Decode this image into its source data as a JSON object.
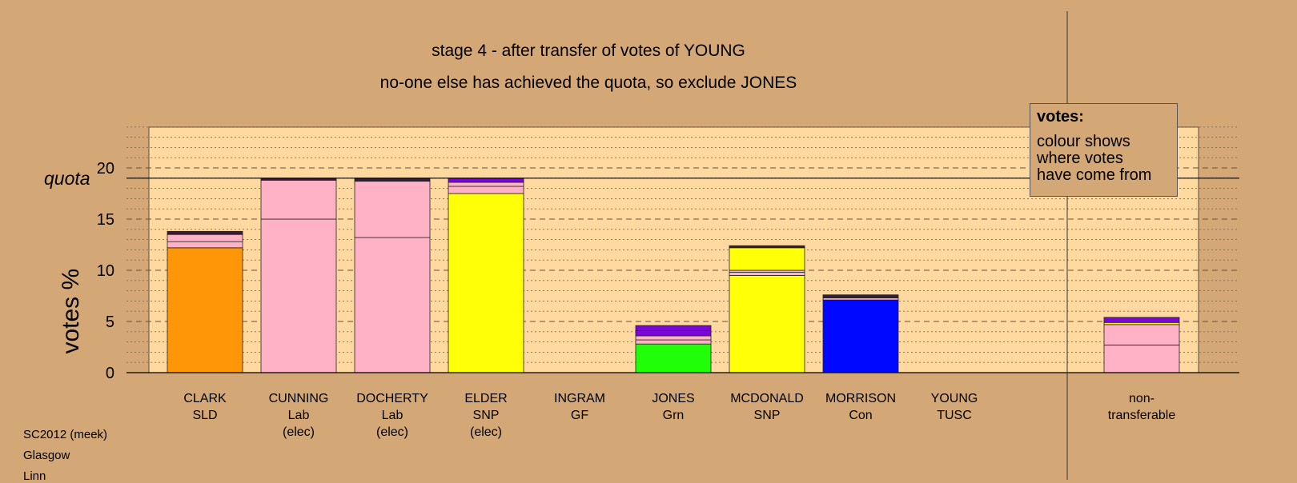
{
  "title": "stage 4 - after transfer of votes of YOUNG",
  "subtitle": "no-one else has achieved the quota, so exclude JONES",
  "legend": {
    "title": "votes:",
    "lines": [
      "colour shows",
      "where votes",
      "have come from"
    ]
  },
  "footer": [
    "SC2012 (meek)",
    "Glasgow",
    "Linn"
  ],
  "colors": {
    "background": "#d4a876",
    "plot_bg": "#ffd9a0",
    "SLD": "#ff9608",
    "Lab": "#ffb1c6",
    "SNP": "#ffff08",
    "Grn": "#21ff08",
    "Con": "#0008ff",
    "transfer_purple": "#7a07d6",
    "transfer_dark": "#3a1a3a"
  },
  "chart_data": {
    "type": "bar",
    "stacked": true,
    "ylabel": "votes %",
    "yticks": [
      0,
      5,
      10,
      15,
      20
    ],
    "ylim": [
      0,
      24
    ],
    "quota": 19,
    "quota_label": "quota",
    "grid": "dashed major, dotted minor",
    "categories": [
      {
        "name": "CLARK",
        "party": "SLD",
        "note": ""
      },
      {
        "name": "CUNNING",
        "party": "Lab",
        "note": "(elec)"
      },
      {
        "name": "DOCHERTY",
        "party": "Lab",
        "note": "(elec)"
      },
      {
        "name": "ELDER",
        "party": "SNP",
        "note": "(elec)"
      },
      {
        "name": "INGRAM",
        "party": "GF",
        "note": ""
      },
      {
        "name": "JONES",
        "party": "Grn",
        "note": ""
      },
      {
        "name": "MCDONALD",
        "party": "SNP",
        "note": ""
      },
      {
        "name": "MORRISON",
        "party": "Con",
        "note": ""
      },
      {
        "name": "YOUNG",
        "party": "TUSC",
        "note": ""
      },
      {
        "name": "non-",
        "party": "transferable",
        "note": ""
      }
    ],
    "segments": [
      [
        {
          "v": 12.2,
          "c": "SLD"
        },
        {
          "v": 0.6,
          "c": "Lab"
        },
        {
          "v": 0.7,
          "c": "Lab"
        },
        {
          "v": 0.3,
          "c": "transfer_dark"
        }
      ],
      [
        {
          "v": 15.0,
          "c": "Lab"
        },
        {
          "v": 3.8,
          "c": "Lab"
        },
        {
          "v": 0.2,
          "c": "transfer_dark"
        }
      ],
      [
        {
          "v": 13.2,
          "c": "Lab"
        },
        {
          "v": 5.5,
          "c": "Lab"
        },
        {
          "v": 0.3,
          "c": "transfer_dark"
        }
      ],
      [
        {
          "v": 17.5,
          "c": "SNP"
        },
        {
          "v": 0.7,
          "c": "Lab"
        },
        {
          "v": 0.4,
          "c": "Lab"
        },
        {
          "v": 0.4,
          "c": "transfer_purple"
        }
      ],
      [],
      [
        {
          "v": 2.8,
          "c": "Grn"
        },
        {
          "v": 0.4,
          "c": "Lab"
        },
        {
          "v": 0.4,
          "c": "Lab"
        },
        {
          "v": 0.5,
          "c": "transfer_purple"
        },
        {
          "v": 0.5,
          "c": "transfer_purple"
        }
      ],
      [
        {
          "v": 9.5,
          "c": "SNP"
        },
        {
          "v": 0.3,
          "c": "Lab"
        },
        {
          "v": 0.2,
          "c": "Lab"
        },
        {
          "v": 2.2,
          "c": "SNP"
        },
        {
          "v": 0.2,
          "c": "transfer_dark"
        }
      ],
      [
        {
          "v": 7.1,
          "c": "Con"
        },
        {
          "v": 0.2,
          "c": "Lab"
        },
        {
          "v": 0.3,
          "c": "transfer_dark"
        }
      ],
      [],
      [
        {
          "v": 2.7,
          "c": "Lab"
        },
        {
          "v": 2.0,
          "c": "Lab"
        },
        {
          "v": 0.2,
          "c": "SNP"
        },
        {
          "v": 0.5,
          "c": "transfer_purple"
        }
      ]
    ]
  }
}
